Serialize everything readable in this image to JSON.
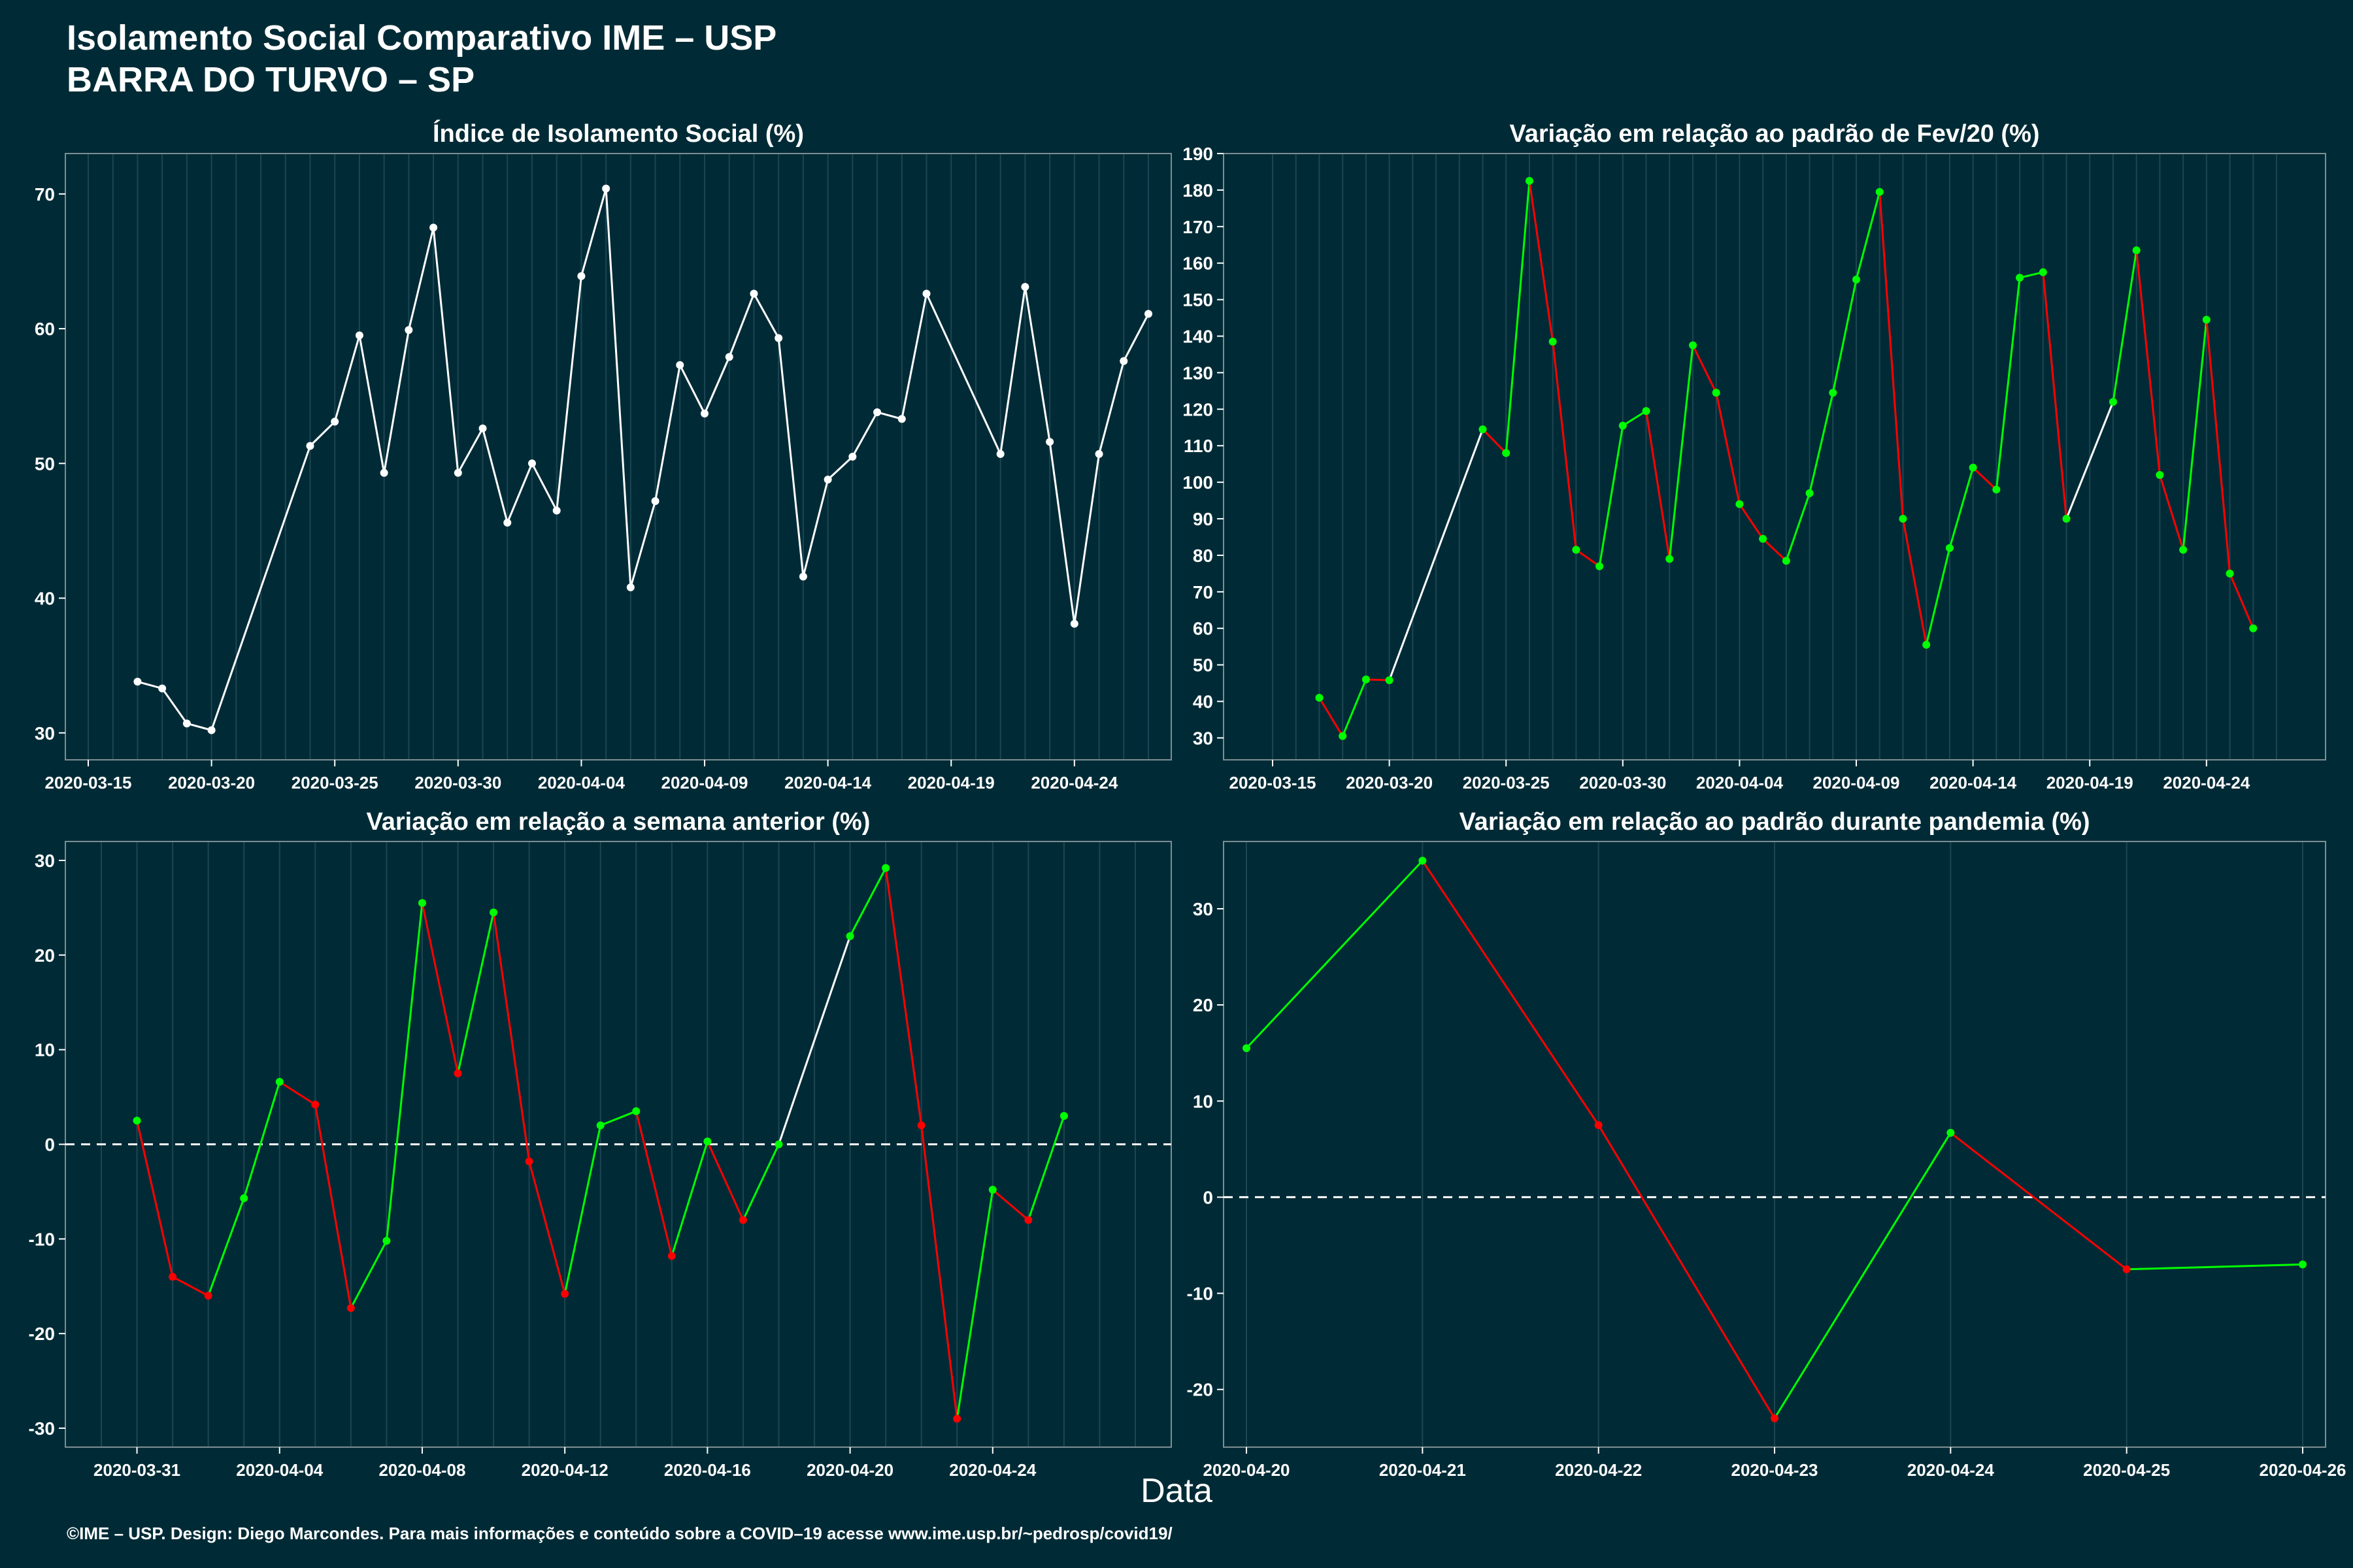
{
  "header": {
    "title": "Isolamento Social Comparativo IME – USP",
    "subtitle": "BARRA DO TURVO – SP"
  },
  "xlabel": "Data",
  "footer": "©IME – USP. Design: Diego Marcondes. Para mais informações e conteúdo sobre a COVID–19 acesse www.ime.usp.br/~pedrosp/covid19/",
  "colors": {
    "background": "#002b36",
    "neutral": "#ffffff",
    "positive": "#00ff00",
    "negative": "#ff0000"
  },
  "chart_data": [
    {
      "type": "line",
      "title": "Índice de Isolamento Social (%)",
      "xlim": [
        "2020-03-15",
        "2020-04-27"
      ],
      "ylim": [
        28,
        73
      ],
      "yticks": [
        30,
        40,
        50,
        60,
        70
      ],
      "xticks": [
        "2020-03-15",
        "2020-03-20",
        "2020-03-25",
        "2020-03-30",
        "2020-04-04",
        "2020-04-09",
        "2020-04-14",
        "2020-04-19",
        "2020-04-24"
      ],
      "points": [
        {
          "x": "2020-03-17",
          "y": 33.8
        },
        {
          "x": "2020-03-18",
          "y": 33.3
        },
        {
          "x": "2020-03-19",
          "y": 30.7
        },
        {
          "x": "2020-03-20",
          "y": 30.2
        },
        {
          "x": "2020-03-24",
          "y": 51.3
        },
        {
          "x": "2020-03-25",
          "y": 53.1
        },
        {
          "x": "2020-03-26",
          "y": 59.5
        },
        {
          "x": "2020-03-27",
          "y": 49.3
        },
        {
          "x": "2020-03-28",
          "y": 59.9
        },
        {
          "x": "2020-03-29",
          "y": 67.5
        },
        {
          "x": "2020-03-30",
          "y": 49.3
        },
        {
          "x": "2020-03-31",
          "y": 52.6
        },
        {
          "x": "2020-04-01",
          "y": 45.6
        },
        {
          "x": "2020-04-02",
          "y": 50.0
        },
        {
          "x": "2020-04-03",
          "y": 46.5
        },
        {
          "x": "2020-04-04",
          "y": 63.9
        },
        {
          "x": "2020-04-05",
          "y": 70.4
        },
        {
          "x": "2020-04-06",
          "y": 40.8
        },
        {
          "x": "2020-04-07",
          "y": 47.2
        },
        {
          "x": "2020-04-08",
          "y": 57.3
        },
        {
          "x": "2020-04-09",
          "y": 53.7
        },
        {
          "x": "2020-04-10",
          "y": 57.9
        },
        {
          "x": "2020-04-11",
          "y": 62.6
        },
        {
          "x": "2020-04-12",
          "y": 59.3
        },
        {
          "x": "2020-04-13",
          "y": 41.6
        },
        {
          "x": "2020-04-14",
          "y": 48.8
        },
        {
          "x": "2020-04-15",
          "y": 50.5
        },
        {
          "x": "2020-04-16",
          "y": 53.8
        },
        {
          "x": "2020-04-17",
          "y": 53.3
        },
        {
          "x": "2020-04-18",
          "y": 62.6
        },
        {
          "x": "2020-04-21",
          "y": 50.7
        },
        {
          "x": "2020-04-22",
          "y": 63.1
        },
        {
          "x": "2020-04-23",
          "y": 51.6
        },
        {
          "x": "2020-04-24",
          "y": 38.1
        },
        {
          "x": "2020-04-25",
          "y": 50.7
        },
        {
          "x": "2020-04-26",
          "y": 57.6
        },
        {
          "x": "2020-04-27",
          "y": 61.1
        }
      ]
    },
    {
      "type": "line",
      "title": "Variação em relação ao padrão de Fev/20 (%)",
      "xlim": [
        "2020-03-15",
        "2020-04-27"
      ],
      "ylim": [
        24,
        190
      ],
      "yticks": [
        30,
        40,
        50,
        60,
        70,
        80,
        90,
        100,
        110,
        120,
        130,
        140,
        150,
        160,
        170,
        180,
        190
      ],
      "xticks": [
        "2020-03-15",
        "2020-03-20",
        "2020-03-25",
        "2020-03-30",
        "2020-04-04",
        "2020-04-09",
        "2020-04-14",
        "2020-04-19",
        "2020-04-24"
      ],
      "points": [
        {
          "x": "2020-03-17",
          "y": 41
        },
        {
          "x": "2020-03-18",
          "y": 30.5
        },
        {
          "x": "2020-03-19",
          "y": 46
        },
        {
          "x": "2020-03-20",
          "y": 45.8
        },
        {
          "x": "2020-03-24",
          "y": 114.5
        },
        {
          "x": "2020-03-25",
          "y": 108
        },
        {
          "x": "2020-03-26",
          "y": 182.5
        },
        {
          "x": "2020-03-27",
          "y": 138.5
        },
        {
          "x": "2020-03-28",
          "y": 81.5
        },
        {
          "x": "2020-03-29",
          "y": 77
        },
        {
          "x": "2020-03-30",
          "y": 115.5
        },
        {
          "x": "2020-03-31",
          "y": 119.5
        },
        {
          "x": "2020-04-01",
          "y": 79
        },
        {
          "x": "2020-04-02",
          "y": 137.5
        },
        {
          "x": "2020-04-03",
          "y": 124.5
        },
        {
          "x": "2020-04-04",
          "y": 94
        },
        {
          "x": "2020-04-05",
          "y": 84.5
        },
        {
          "x": "2020-04-06",
          "y": 78.5
        },
        {
          "x": "2020-04-07",
          "y": 97
        },
        {
          "x": "2020-04-08",
          "y": 124.5
        },
        {
          "x": "2020-04-09",
          "y": 155.5
        },
        {
          "x": "2020-04-10",
          "y": 179.5
        },
        {
          "x": "2020-04-11",
          "y": 90
        },
        {
          "x": "2020-04-12",
          "y": 55.5
        },
        {
          "x": "2020-04-13",
          "y": 82
        },
        {
          "x": "2020-04-14",
          "y": 104
        },
        {
          "x": "2020-04-15",
          "y": 98
        },
        {
          "x": "2020-04-16",
          "y": 156
        },
        {
          "x": "2020-04-17",
          "y": 157.5
        },
        {
          "x": "2020-04-18",
          "y": 90
        },
        {
          "x": "2020-04-20",
          "y": 122
        },
        {
          "x": "2020-04-21",
          "y": 163.5
        },
        {
          "x": "2020-04-22",
          "y": 102
        },
        {
          "x": "2020-04-23",
          "y": 81.5
        },
        {
          "x": "2020-04-24",
          "y": 144.5
        },
        {
          "x": "2020-04-25",
          "y": 75
        },
        {
          "x": "2020-04-26",
          "y": 60
        }
      ]
    },
    {
      "type": "line",
      "title": "Variação em relação a semana anterior (%)",
      "xlim": [
        "2020-03-30",
        "2020-04-28"
      ],
      "ylim": [
        -32,
        32
      ],
      "yticks": [
        -30,
        -20,
        -10,
        0,
        10,
        20,
        30
      ],
      "xticks": [
        "2020-03-31",
        "2020-04-04",
        "2020-04-08",
        "2020-04-12",
        "2020-04-16",
        "2020-04-20",
        "2020-04-24"
      ],
      "reference_line": 0,
      "points": [
        {
          "x": "2020-03-31",
          "y": 2.5
        },
        {
          "x": "2020-04-01",
          "y": -14
        },
        {
          "x": "2020-04-02",
          "y": -16
        },
        {
          "x": "2020-04-03",
          "y": -5.7
        },
        {
          "x": "2020-04-04",
          "y": 6.6
        },
        {
          "x": "2020-04-05",
          "y": 4.2
        },
        {
          "x": "2020-04-06",
          "y": -17.3
        },
        {
          "x": "2020-04-07",
          "y": -10.2
        },
        {
          "x": "2020-04-08",
          "y": 25.5
        },
        {
          "x": "2020-04-09",
          "y": 7.5
        },
        {
          "x": "2020-04-10",
          "y": 24.5
        },
        {
          "x": "2020-04-11",
          "y": -1.8
        },
        {
          "x": "2020-04-12",
          "y": -15.8
        },
        {
          "x": "2020-04-13",
          "y": 2
        },
        {
          "x": "2020-04-14",
          "y": 3.5
        },
        {
          "x": "2020-04-15",
          "y": -11.8
        },
        {
          "x": "2020-04-16",
          "y": 0.3
        },
        {
          "x": "2020-04-17",
          "y": -8
        },
        {
          "x": "2020-04-18",
          "y": 0
        },
        {
          "x": "2020-04-20",
          "y": 22
        },
        {
          "x": "2020-04-21",
          "y": 29.2
        },
        {
          "x": "2020-04-22",
          "y": 2
        },
        {
          "x": "2020-04-23",
          "y": -29
        },
        {
          "x": "2020-04-24",
          "y": -4.8
        },
        {
          "x": "2020-04-25",
          "y": -8
        },
        {
          "x": "2020-04-26",
          "y": 3
        }
      ]
    },
    {
      "type": "line",
      "title": "Variação em relação ao padrão durante pandemia (%)",
      "xlim": [
        "2020-04-20",
        "2020-04-26"
      ],
      "ylim": [
        -26,
        37
      ],
      "yticks": [
        -20,
        -10,
        0,
        10,
        20,
        30
      ],
      "xticks": [
        "2020-04-20",
        "2020-04-21",
        "2020-04-22",
        "2020-04-23",
        "2020-04-24",
        "2020-04-25",
        "2020-04-26"
      ],
      "reference_line": 0,
      "points": [
        {
          "x": "2020-04-20",
          "y": 15.5
        },
        {
          "x": "2020-04-21",
          "y": 35
        },
        {
          "x": "2020-04-22",
          "y": 7.5
        },
        {
          "x": "2020-04-23",
          "y": -23
        },
        {
          "x": "2020-04-24",
          "y": 6.7
        },
        {
          "x": "2020-04-25",
          "y": -7.5
        },
        {
          "x": "2020-04-26",
          "y": -7
        }
      ]
    }
  ]
}
